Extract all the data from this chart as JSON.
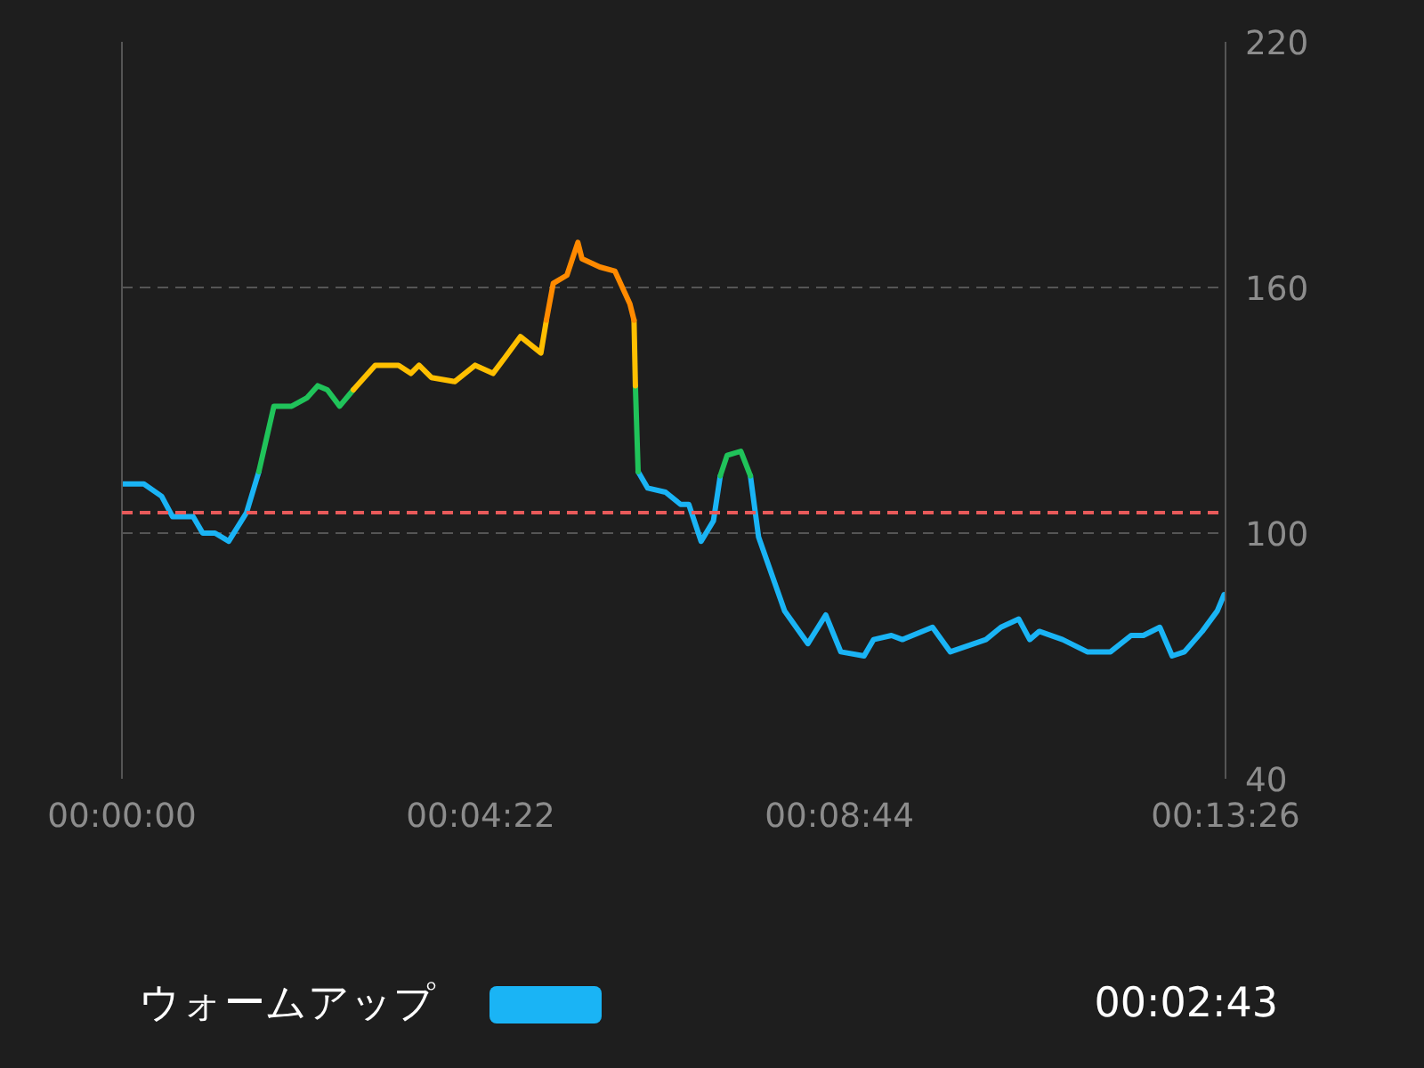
{
  "chart_data": {
    "type": "line",
    "xlim": [
      0,
      806
    ],
    "ylim": [
      40,
      220
    ],
    "xticks": [
      {
        "value": 0,
        "label": "00:00:00"
      },
      {
        "value": 262,
        "label": "00:04:22"
      },
      {
        "value": 524,
        "label": "00:08:44"
      },
      {
        "value": 806,
        "label": "00:13:26"
      }
    ],
    "yticks": [
      40,
      100,
      160,
      220
    ],
    "grid": "y",
    "legend": "bottom",
    "ref_lines": [
      {
        "axis": "y",
        "value": 105,
        "color": "#e85a5a",
        "line_style": "dashed"
      }
    ],
    "annotations": [
      "00:02:43"
    ],
    "series": [
      {
        "name": "ウォームアップ",
        "color": "#1ab4f5",
        "x": [
          0,
          16,
          29,
          37,
          52,
          59,
          68,
          78,
          91,
          100,
          101,
          377,
          384,
          397,
          408,
          414,
          423,
          432,
          437,
          438,
          459,
          465,
          484,
          501,
          514,
          525,
          542,
          549,
          562,
          570,
          592,
          605,
          631,
          642,
          655,
          663,
          670,
          687,
          705,
          722,
          737,
          746,
          758,
          767,
          776,
          789,
          800,
          805
        ],
        "values": [
          112,
          112,
          109,
          104,
          104,
          100,
          100,
          98,
          105,
          115,
          null,
          115,
          111,
          110,
          107,
          107,
          98,
          103,
          114,
          null,
          114,
          99,
          81,
          73,
          80,
          71,
          70,
          74,
          75,
          74,
          77,
          71,
          74,
          77,
          79,
          74,
          76,
          74,
          71,
          71,
          75,
          75,
          77,
          70,
          71,
          76,
          81,
          85
        ]
      },
      {
        "color": "#20c35a",
        "x": [
          100,
          111,
          124,
          135,
          143,
          150,
          159,
          169,
          170,
          375,
          377,
          378,
          437,
          442,
          452,
          459
        ],
        "values": [
          115,
          131,
          131,
          133,
          136,
          135,
          131,
          135,
          null,
          136,
          115,
          null,
          114,
          119,
          120,
          114
        ]
      },
      {
        "color": "#ffbf00",
        "x": [
          169,
          185,
          202,
          211,
          217,
          226,
          243,
          258,
          271,
          280,
          291,
          306,
          310,
          311,
          374,
          375
        ],
        "values": [
          135,
          141,
          141,
          139,
          141,
          138,
          137,
          141,
          139,
          143,
          148,
          144,
          152,
          null,
          152,
          136
        ]
      },
      {
        "color": "#ff8a00",
        "x": [
          310,
          315,
          325,
          333,
          336,
          349,
          360,
          371,
          374
        ],
        "values": [
          152,
          161,
          163,
          171,
          167,
          165,
          164,
          156,
          152
        ]
      }
    ]
  }
}
